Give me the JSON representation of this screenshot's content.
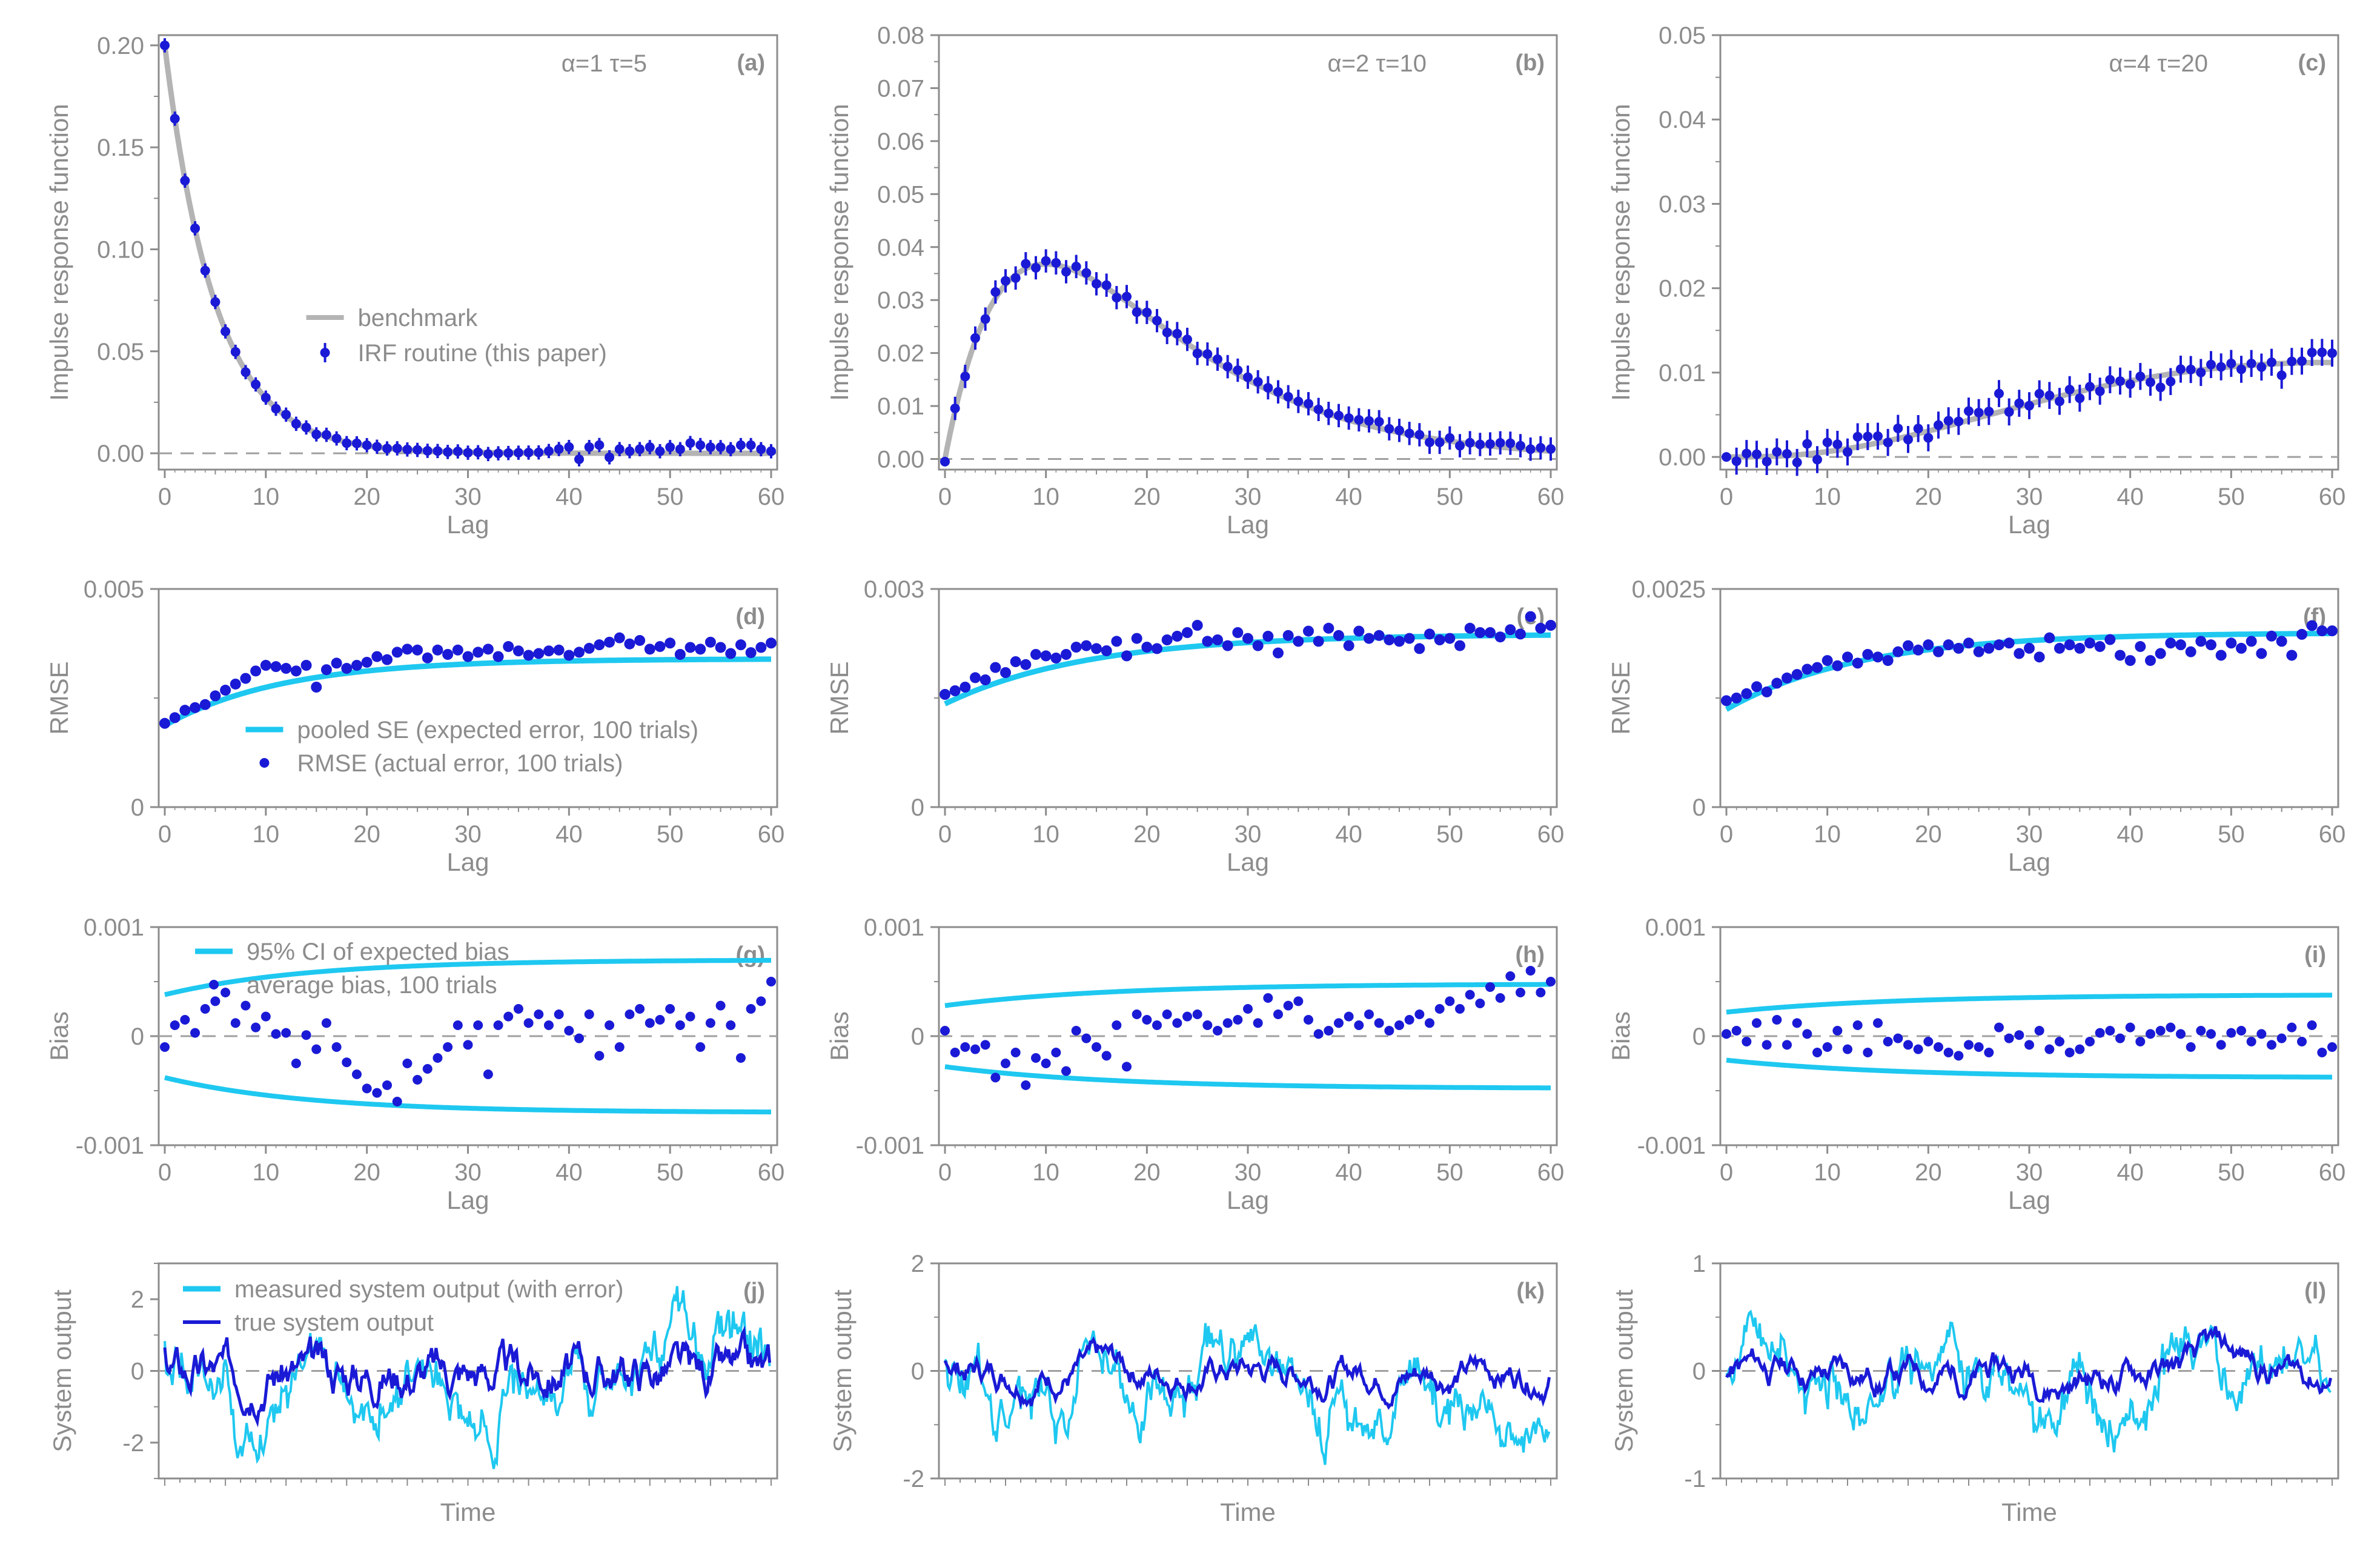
{
  "colors": {
    "benchmark": "#b4b4b4",
    "irf": "#1a1ad6",
    "se": "#1ec8f0",
    "rmse": "#1a1ad6",
    "ci": "#1ec8f0",
    "bias": "#1a1ad6",
    "measured": "#1ec8f0",
    "true": "#1a1ad6",
    "axis": "#8c8c8c",
    "zero_line": "#a0a0a0"
  },
  "chart_data": [
    {
      "id": "a",
      "type": "scatter",
      "panel_label": "(a)",
      "params": "α=1   τ=5",
      "alpha": 1,
      "tau": 5,
      "kind": "irf",
      "xlabel": "Lag",
      "ylabel": "Impulse response function",
      "xlim": [
        0,
        60
      ],
      "ylim": [
        -0.008,
        0.205
      ],
      "xticks": [
        0,
        10,
        20,
        30,
        40,
        50,
        60
      ],
      "yticks": [
        0,
        0.05,
        0.1,
        0.15,
        0.2
      ],
      "ytick_labels": [
        "0.00",
        "0.05",
        "0.10",
        "0.15",
        "0.20"
      ],
      "legend": [
        {
          "label": "benchmark",
          "style": "line"
        },
        {
          "label": "IRF routine (this paper)",
          "style": "point-errorbar"
        }
      ],
      "noise": [
        0,
        0.0003,
        -0.0004,
        0.0005,
        -0.0003,
        0.0006,
        -0.0005,
        0.0004,
        -0.0006,
        0.0007,
        0.0002,
        -0.0003,
        0.0008,
        -0.0004,
        0.0005,
        -0.0007,
        0.0009,
        0.0006,
        -0.0005,
        0.0004,
        0.0003,
        0.0002,
        -0.0001,
        0.0004,
        0.0002,
        0.0003,
        0.0001,
        0.0002,
        -0.0001,
        0.0003,
        -0.0002,
        0.0001,
        -0.0007,
        -0.0003,
        -0.0001,
        0.0001,
        0.0002,
        0.0003,
        0.001,
        0.002,
        0.003,
        -0.003,
        0.003,
        0.004,
        -0.002,
        0.002,
        0.001,
        0.002,
        0.003,
        0.001,
        0.003,
        0.002,
        0.005,
        0.004,
        0.003,
        0.003,
        0.002,
        0.004,
        0.004,
        0.002,
        0.001
      ],
      "errorbar": 0.0035
    },
    {
      "id": "b",
      "type": "scatter",
      "panel_label": "(b)",
      "params": "α=2   τ=10",
      "alpha": 2,
      "tau": 10,
      "kind": "irf",
      "xlabel": "Lag",
      "ylabel": "Impulse response function",
      "xlim": [
        0,
        60
      ],
      "ylim": [
        -0.002,
        0.08
      ],
      "xticks": [
        0,
        10,
        20,
        30,
        40,
        50,
        60
      ],
      "yticks": [
        0,
        0.01,
        0.02,
        0.03,
        0.04,
        0.05,
        0.06,
        0.07,
        0.08
      ],
      "ytick_labels": [
        "0.00",
        "0.01",
        "0.02",
        "0.03",
        "0.04",
        "0.05",
        "0.06",
        "0.07",
        "0.08"
      ],
      "noise": [
        -0.0005,
        0.0005,
        -0.0008,
        0.0006,
        -0.0004,
        0.0012,
        0.0007,
        -0.0006,
        0.0009,
        -0.0005,
        0.0006,
        0.0004,
        -0.0008,
        0.0009,
        0.0006,
        -0.0004,
        0.0005,
        -0.0006,
        0.0009,
        -0.0007,
        0.0006,
        0.0004,
        -0.0005,
        0.0006,
        0.0008,
        -0.0006,
        0.0005,
        0.0007,
        0.0004,
        0.0008,
        0.0005,
        0.0006,
        0.0004,
        0.0005,
        0.0004,
        0.0003,
        0.0006,
        0.0002,
        0.0001,
        0.0003,
        0.0004,
        0.0006,
        0.0009,
        0.0012,
        0.0003,
        0.0004,
        0.0002,
        0.0003,
        -0.0008,
        -0.0005,
        0.0006,
        -0.0006,
        0.0002,
        0.0001,
        0.0004,
        0.0008,
        0.0009,
        0.0006,
        0.0001,
        0.0005,
        0.0004
      ],
      "errorbar": 0.0022
    },
    {
      "id": "c",
      "type": "scatter",
      "panel_label": "(c)",
      "params": "α=4   τ=20",
      "alpha": 4,
      "tau": 20,
      "kind": "irf",
      "xlabel": "Lag",
      "ylabel": "Impulse response function",
      "xlim": [
        0,
        60
      ],
      "ylim": [
        -0.0015,
        0.05
      ],
      "xticks": [
        0,
        10,
        20,
        30,
        40,
        50,
        60
      ],
      "yticks": [
        0,
        0.01,
        0.02,
        0.03,
        0.04,
        0.05
      ],
      "ytick_labels": [
        "0.00",
        "0.01",
        "0.02",
        "0.03",
        "0.04",
        "0.05"
      ],
      "noise": [
        0,
        -0.0005,
        0.0004,
        0.0003,
        -0.0006,
        0.0005,
        0.0002,
        -0.0009,
        0.0012,
        -0.0008,
        0.0011,
        0.0007,
        -0.0004,
        0.0012,
        0.001,
        0.0008,
        -0.0002,
        0.0012,
        -0.0004,
        0.0006,
        -0.0008,
        0.0004,
        0.0006,
        0.0002,
        0.0011,
        0.0006,
        0.0004,
        0.0022,
        -0.0003,
        0.0004,
        -0.0002,
        0.0009,
        0.0004,
        -0.0006,
        0.0005,
        -0.0008,
        0.0003,
        -0.0005,
        0.0006,
        0.0002,
        -0.0004,
        0.0003,
        -0.0006,
        -0.0014,
        -0.0009,
        0.0004,
        0.0002,
        -0.0003,
        0.0005,
        0.0001,
        0.0004,
        -0.0004,
        0.0002,
        -0.0003,
        0.0002,
        -0.0014,
        0.0002,
        0.0002,
        0.0012,
        0.0012,
        0.0011
      ],
      "errorbar": 0.0016
    },
    {
      "id": "d",
      "type": "scatter",
      "panel_label": "(d)",
      "kind": "rmse",
      "xlabel": "Lag",
      "ylabel": "RMSE",
      "xlim": [
        0,
        60
      ],
      "ylim": [
        0,
        0.005
      ],
      "xticks": [
        0,
        10,
        20,
        30,
        40,
        50,
        60
      ],
      "yticks": [
        0,
        0.005
      ],
      "ytick_labels": [
        "0",
        "0.005"
      ],
      "se_curve": {
        "start": 0.00187,
        "end": 0.0034,
        "rate": 0.085
      },
      "rmse": [
        0.00192,
        0.00205,
        0.00222,
        0.00228,
        0.00235,
        0.00255,
        0.00268,
        0.00282,
        0.00295,
        0.00312,
        0.00325,
        0.00322,
        0.00318,
        0.00312,
        0.00325,
        0.00275,
        0.00315,
        0.0033,
        0.00318,
        0.00325,
        0.00332,
        0.00345,
        0.00338,
        0.00355,
        0.00362,
        0.0036,
        0.00342,
        0.0036,
        0.0035,
        0.0036,
        0.00345,
        0.00355,
        0.00362,
        0.00345,
        0.00368,
        0.00358,
        0.00348,
        0.00352,
        0.00358,
        0.0036,
        0.00348,
        0.00355,
        0.00364,
        0.00372,
        0.00378,
        0.00388,
        0.00374,
        0.00382,
        0.00362,
        0.00368,
        0.00376,
        0.0035,
        0.00366,
        0.00362,
        0.00378,
        0.00366,
        0.00352,
        0.00372,
        0.00354,
        0.00366,
        0.00376
      ],
      "legend": [
        {
          "label": "pooled SE (expected error, 100 trials)",
          "style": "line"
        },
        {
          "label": "RMSE (actual error, 100 trials)",
          "style": "point"
        }
      ]
    },
    {
      "id": "e",
      "type": "scatter",
      "panel_label": "(e)",
      "kind": "rmse",
      "xlabel": "Lag",
      "ylabel": "RMSE",
      "xlim": [
        0,
        60
      ],
      "ylim": [
        0,
        0.003
      ],
      "xticks": [
        0,
        10,
        20,
        30,
        40,
        50,
        60
      ],
      "yticks": [
        0,
        0.003
      ],
      "ytick_labels": [
        "0",
        "0.003"
      ],
      "se_curve": {
        "start": 0.00142,
        "end": 0.00238,
        "rate": 0.07
      },
      "rmse": [
        0.00155,
        0.0016,
        0.00165,
        0.00178,
        0.00175,
        0.00192,
        0.00185,
        0.002,
        0.00196,
        0.0021,
        0.00208,
        0.00205,
        0.0021,
        0.0022,
        0.00222,
        0.00218,
        0.00215,
        0.00228,
        0.00208,
        0.00232,
        0.0022,
        0.00218,
        0.0023,
        0.00235,
        0.0024,
        0.0025,
        0.00228,
        0.0023,
        0.00222,
        0.0024,
        0.00232,
        0.00222,
        0.00235,
        0.00212,
        0.00236,
        0.00228,
        0.00242,
        0.00228,
        0.00246,
        0.00236,
        0.00222,
        0.00242,
        0.00232,
        0.00236,
        0.0023,
        0.00228,
        0.00232,
        0.00218,
        0.00238,
        0.0023,
        0.00232,
        0.00222,
        0.00246,
        0.0024,
        0.0024,
        0.00234,
        0.00244,
        0.00238,
        0.00262,
        0.00246,
        0.0025
      ],
      "se_note": "pooled SE"
    },
    {
      "id": "f",
      "type": "scatter",
      "panel_label": "(f)",
      "kind": "rmse",
      "xlabel": "Lag",
      "ylabel": "RMSE",
      "xlim": [
        0,
        60
      ],
      "ylim": [
        0,
        0.0025
      ],
      "xticks": [
        0,
        10,
        20,
        30,
        40,
        50,
        60
      ],
      "yticks": [
        0,
        0.0025
      ],
      "ytick_labels": [
        "0",
        "0.0025"
      ],
      "se_curve": {
        "start": 0.00112,
        "end": 0.002,
        "rate": 0.075
      },
      "rmse": [
        0.00122,
        0.00125,
        0.0013,
        0.00138,
        0.00132,
        0.00142,
        0.00148,
        0.00152,
        0.00158,
        0.0016,
        0.00168,
        0.00162,
        0.00172,
        0.00165,
        0.00175,
        0.00172,
        0.00168,
        0.00178,
        0.00185,
        0.0018,
        0.00186,
        0.00178,
        0.00186,
        0.00182,
        0.00188,
        0.00178,
        0.00182,
        0.00186,
        0.00188,
        0.00176,
        0.00182,
        0.00172,
        0.00194,
        0.00182,
        0.00186,
        0.00182,
        0.00188,
        0.00184,
        0.00192,
        0.00174,
        0.00168,
        0.00184,
        0.00168,
        0.00176,
        0.00188,
        0.00186,
        0.00178,
        0.0019,
        0.00186,
        0.00174,
        0.00188,
        0.00182,
        0.0019,
        0.00176,
        0.00196,
        0.0019,
        0.00174,
        0.00198,
        0.00208,
        0.00202,
        0.00202
      ]
    },
    {
      "id": "g",
      "type": "scatter",
      "panel_label": "(g)",
      "kind": "bias",
      "xlabel": "Lag",
      "ylabel": "Bias",
      "xlim": [
        0,
        60
      ],
      "ylim": [
        -0.001,
        0.001
      ],
      "xticks": [
        0,
        10,
        20,
        30,
        40,
        50,
        60
      ],
      "yticks": [
        -0.001,
        0,
        0.001
      ],
      "ytick_labels": [
        "-0.001",
        "0",
        "0.001"
      ],
      "ci": {
        "start": 0.00038,
        "end": 0.0007,
        "rate": 0.07
      },
      "bias": [
        -0.0001,
        0.0001,
        0.00015,
        3e-05,
        0.00025,
        0.00032,
        0.0004,
        0.00012,
        0.00028,
        8e-05,
        0.00018,
        2e-05,
        3e-05,
        -0.00025,
        1e-05,
        -0.00012,
        0.00012,
        -0.0001,
        -0.00024,
        -0.00035,
        -0.00048,
        -0.00052,
        -0.00045,
        -0.0006,
        -0.00025,
        -0.0004,
        -0.0003,
        -0.0002,
        -0.0001,
        0.0001,
        -8e-05,
        0.0001,
        -0.00035,
        0.0001,
        0.00018,
        0.00025,
        0.00012,
        0.0002,
        0.0001,
        0.0002,
        5e-05,
        -2e-05,
        0.0002,
        -0.00018,
        0.0001,
        -0.0001,
        0.0002,
        0.00025,
        0.00012,
        0.00015,
        0.00025,
        0.0001,
        0.00018,
        -0.0001,
        0.00012,
        0.00028,
        0.0001,
        -0.0002,
        0.00025,
        0.00032,
        0.0005
      ],
      "legend": [
        {
          "label": "95% CI of expected bias",
          "style": "line"
        },
        {
          "label": "average bias, 100 trials",
          "style": "point"
        }
      ]
    },
    {
      "id": "h",
      "type": "scatter",
      "panel_label": "(h)",
      "kind": "bias",
      "xlabel": "Lag",
      "ylabel": "Bias",
      "xlim": [
        0,
        60
      ],
      "ylim": [
        -0.001,
        0.001
      ],
      "xticks": [
        0,
        10,
        20,
        30,
        40,
        50,
        60
      ],
      "yticks": [
        -0.001,
        0,
        0.001
      ],
      "ytick_labels": [
        "-0.001",
        "0",
        "0.001"
      ],
      "ci": {
        "start": 0.00028,
        "end": 0.00048,
        "rate": 0.06
      },
      "bias": [
        5e-05,
        -0.00015,
        -0.0001,
        -0.00012,
        -8e-05,
        -0.00038,
        -0.00025,
        -0.00015,
        -0.00045,
        -0.0002,
        -0.00025,
        -0.00015,
        -0.00032,
        5e-05,
        -2e-05,
        -0.0001,
        -0.00018,
        0.0001,
        -0.00028,
        0.0002,
        0.00015,
        0.0001,
        0.0002,
        0.00012,
        0.00018,
        0.0002,
        0.0001,
        5e-05,
        0.00012,
        0.00015,
        0.00025,
        0.00012,
        0.00035,
        0.0002,
        0.00028,
        0.00032,
        0.00015,
        2e-05,
        5e-05,
        0.00012,
        0.00018,
        0.0001,
        0.0002,
        0.00012,
        5e-05,
        0.0001,
        0.00015,
        0.0002,
        0.00012,
        0.00025,
        0.00032,
        0.00025,
        0.00038,
        0.0003,
        0.00045,
        0.00035,
        0.00055,
        0.0004,
        0.0006,
        0.0004,
        0.0005
      ]
    },
    {
      "id": "i",
      "type": "scatter",
      "panel_label": "(i)",
      "kind": "bias",
      "xlabel": "Lag",
      "ylabel": "Bias",
      "xlim": [
        0,
        60
      ],
      "ylim": [
        -0.001,
        0.001
      ],
      "xticks": [
        0,
        10,
        20,
        30,
        40,
        50,
        60
      ],
      "yticks": [
        -0.001,
        0,
        0.001
      ],
      "ytick_labels": [
        "-0.001",
        "0",
        "0.001"
      ],
      "ci": {
        "start": 0.00022,
        "end": 0.00038,
        "rate": 0.06
      },
      "bias": [
        2e-05,
        5e-05,
        -5e-05,
        0.00012,
        -8e-05,
        0.00015,
        -8e-05,
        0.00012,
        2e-05,
        -0.00015,
        -0.0001,
        5e-05,
        -0.00012,
        0.0001,
        -0.00015,
        0.00012,
        -5e-05,
        -2e-05,
        -8e-05,
        -0.00012,
        -5e-05,
        -0.0001,
        -0.00015,
        -0.00018,
        -8e-05,
        -0.0001,
        -0.00015,
        8e-05,
        -2e-05,
        1e-05,
        -8e-05,
        5e-05,
        -0.00012,
        -5e-05,
        -0.00015,
        -0.00012,
        -5e-05,
        3e-05,
        5e-05,
        -2e-05,
        8e-05,
        -5e-05,
        2e-05,
        5e-05,
        8e-05,
        2e-05,
        -0.0001,
        5e-05,
        2e-05,
        -8e-05,
        3e-05,
        5e-05,
        -5e-05,
        2e-05,
        -8e-05,
        -2e-05,
        8e-05,
        -5e-05,
        0.0001,
        -0.00015,
        -0.0001
      ]
    },
    {
      "id": "j",
      "type": "line",
      "panel_label": "(j)",
      "kind": "ts",
      "xlabel": "Time",
      "ylabel": "System output",
      "ylim": [
        -3,
        3
      ],
      "yticks": [
        -2,
        0,
        2
      ],
      "ytick_labels": [
        "-2",
        "0",
        "2"
      ],
      "true_noise": 1.0,
      "meas_noise": 0.8,
      "smooth": 5,
      "seed": 3,
      "legend": [
        {
          "label": "measured system output (with error)",
          "style": "line"
        },
        {
          "label": "true system output",
          "style": "line"
        }
      ]
    },
    {
      "id": "k",
      "type": "line",
      "panel_label": "(k)",
      "kind": "ts",
      "xlabel": "Time",
      "ylabel": "System output",
      "ylim": [
        -2,
        2
      ],
      "yticks": [
        -2,
        0,
        2
      ],
      "ytick_labels": [
        "-2",
        "0",
        "2"
      ],
      "true_noise": 0.55,
      "meas_noise": 0.6,
      "smooth": 10,
      "seed": 7
    },
    {
      "id": "l",
      "type": "line",
      "panel_label": "(l)",
      "kind": "ts",
      "xlabel": "Time",
      "ylabel": "System output",
      "ylim": [
        -1,
        1
      ],
      "yticks": [
        -1,
        0,
        1
      ],
      "ytick_labels": [
        "-1",
        "0",
        "1"
      ],
      "true_noise": 0.4,
      "meas_noise": 0.3,
      "smooth": 20,
      "seed": 11
    }
  ]
}
